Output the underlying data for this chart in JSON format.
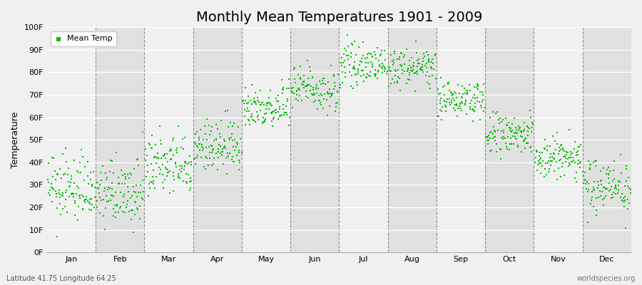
{
  "title": "Monthly Mean Temperatures 1901 - 2009",
  "ylabel": "Temperature",
  "xlabel_bottom_left": "Latitude 41.75 Longitude 64.25",
  "xlabel_bottom_right": "worldspecies.org",
  "dot_color": "#00BB00",
  "background_color": "#F0F0F0",
  "plot_bg_color": "#F0F0F0",
  "stripe_color": "#E0E0E0",
  "ylim": [
    0,
    100
  ],
  "ytick_labels": [
    "0F",
    "10F",
    "20F",
    "30F",
    "40F",
    "50F",
    "60F",
    "70F",
    "80F",
    "90F",
    "100F"
  ],
  "ytick_values": [
    0,
    10,
    20,
    30,
    40,
    50,
    60,
    70,
    80,
    90,
    100
  ],
  "months": [
    "Jan",
    "Feb",
    "Mar",
    "Apr",
    "May",
    "Jun",
    "Jul",
    "Aug",
    "Sep",
    "Oct",
    "Nov",
    "Dec"
  ],
  "title_fontsize": 14,
  "legend_label": "Mean Temp",
  "n_years": 109,
  "year_start": 1901,
  "year_end": 2009,
  "monthly_means_F": [
    28,
    26,
    38,
    47,
    65,
    73,
    83,
    82,
    68,
    52,
    42,
    30
  ],
  "monthly_stds_F": [
    7,
    7,
    7,
    6,
    5,
    5,
    4,
    4,
    4,
    5,
    5,
    6
  ]
}
